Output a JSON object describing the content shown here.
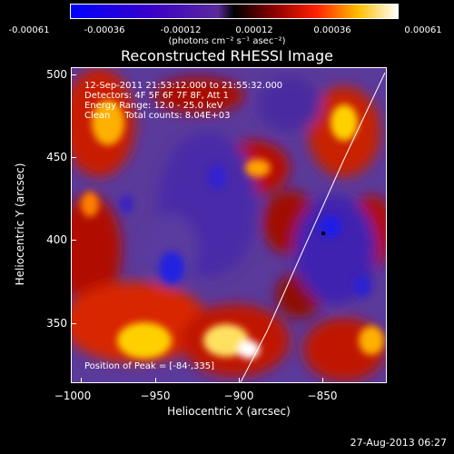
{
  "colorbar": {
    "ticks": [
      "-0.00061",
      "-0.00036",
      "-0.00012",
      "0.00012",
      "0.00036",
      "0.00061"
    ],
    "units": "(photons cm⁻² s⁻¹ asec⁻²)"
  },
  "title": "Reconstructed RHESSI Image",
  "info": {
    "time": "12-Sep-2011 21:53:12.000 to 21:55:32.000",
    "detectors": "Detectors: 4F 5F 6F 7F 8F, Att 1",
    "energy": "Energy Range: 12.0 - 25.0 keV",
    "clean": "Clean     Total counts: 8.04E+03",
    "peak": "Position of Peak = [-84·,335]"
  },
  "axes": {
    "xlabel": "Heliocentric X (arcsec)",
    "ylabel": "Heliocentric Y (arcsec)",
    "xticks": [
      "−1000",
      "−950",
      "−900",
      "−850"
    ],
    "yticks": [
      "500",
      "450",
      "400",
      "350"
    ]
  },
  "timestamp": "27-Aug-2013 06:27",
  "colors": {
    "background": "#000000",
    "text": "#ffffff"
  }
}
